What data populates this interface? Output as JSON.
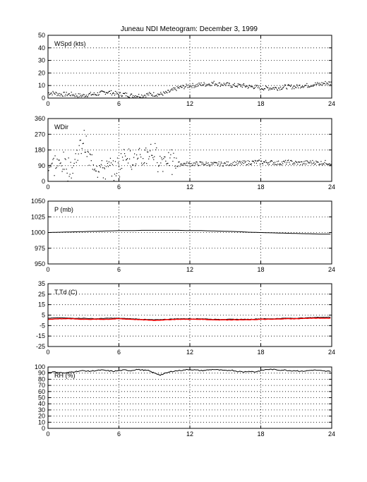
{
  "title": "Juneau NDI Meteogram:  December  3, 1999",
  "chart_data": [
    {
      "type": "scatter",
      "label": "WSpd (kts)",
      "xlim": [
        0,
        24
      ],
      "ylim": [
        0,
        50
      ],
      "xticks": [
        "0",
        "6",
        "12",
        "18",
        "24"
      ],
      "yticks": [
        "0",
        "10",
        "20",
        "30",
        "40",
        "50"
      ],
      "yticks_values": [
        0,
        10,
        20,
        30,
        40,
        50
      ],
      "grid": true,
      "x": [
        0,
        0.5,
        1,
        1.5,
        2,
        2.5,
        3,
        3.5,
        4,
        4.5,
        5,
        5.5,
        6,
        6.5,
        7,
        7.5,
        8,
        8.5,
        9,
        9.5,
        10,
        10.5,
        11,
        11.5,
        12,
        12.5,
        13,
        13.5,
        14,
        14.5,
        15,
        15.5,
        16,
        16.5,
        17,
        17.5,
        18,
        18.5,
        19,
        19.5,
        20,
        20.5,
        21,
        21.5,
        22,
        22.5,
        23,
        23.5,
        24
      ],
      "y": [
        4,
        4,
        3,
        3,
        3,
        2,
        2,
        3,
        3,
        4,
        5,
        4,
        3,
        3,
        2,
        2,
        2,
        3,
        3,
        3,
        4,
        6,
        8,
        9,
        10,
        10,
        11,
        11,
        12,
        11,
        11,
        10,
        10,
        10,
        9,
        9,
        8,
        8,
        8,
        8,
        9,
        9,
        9,
        10,
        10,
        11,
        11,
        12,
        12
      ]
    },
    {
      "type": "scatter",
      "label": "WDir",
      "xlim": [
        0,
        24
      ],
      "ylim": [
        0,
        360
      ],
      "xticks": [
        "0",
        "6",
        "12",
        "18",
        "24"
      ],
      "yticks": [
        "0",
        "90",
        "180",
        "270",
        "360"
      ],
      "yticks_values": [
        0,
        90,
        180,
        270,
        360
      ],
      "grid": true,
      "x": [
        0,
        0.5,
        1,
        1.5,
        2,
        2.5,
        3,
        3.5,
        4,
        4.5,
        5,
        5.5,
        6,
        6.5,
        7,
        7.5,
        8,
        8.5,
        9,
        9.5,
        10,
        10.5,
        11,
        11.5,
        12,
        12.5,
        13,
        13.5,
        14,
        14.5,
        15,
        15.5,
        16,
        16.5,
        17,
        17.5,
        18,
        18.5,
        19,
        19.5,
        20,
        20.5,
        21,
        21.5,
        22,
        22.5,
        23,
        23.5,
        24
      ],
      "y": [
        100,
        100,
        95,
        90,
        60,
        160,
        240,
        120,
        90,
        80,
        70,
        75,
        80,
        160,
        140,
        110,
        120,
        180,
        150,
        120,
        140,
        100,
        100,
        100,
        100,
        100,
        102,
        100,
        98,
        100,
        100,
        102,
        105,
        105,
        108,
        110,
        110,
        110,
        108,
        105,
        108,
        110,
        105,
        105,
        108,
        110,
        105,
        108,
        105
      ]
    },
    {
      "type": "line",
      "label": "P (mb)",
      "xlim": [
        0,
        24
      ],
      "ylim": [
        950,
        1050
      ],
      "xticks": [
        "0",
        "6",
        "12",
        "18",
        "24"
      ],
      "yticks": [
        "950",
        "975",
        "1000",
        "1025",
        "1050"
      ],
      "yticks_values": [
        950,
        975,
        1000,
        1025,
        1050
      ],
      "grid": true,
      "x": [
        0,
        1,
        2,
        3,
        4,
        5,
        6,
        7,
        8,
        9,
        10,
        11,
        12,
        13,
        14,
        15,
        16,
        17,
        18,
        19,
        20,
        21,
        22,
        23,
        24
      ],
      "y": [
        1000,
        1000.5,
        1001,
        1001.5,
        1002,
        1002.5,
        1003,
        1003,
        1003.5,
        1003.5,
        1003.5,
        1003.5,
        1003,
        1003,
        1002.5,
        1002,
        1001.5,
        1000.5,
        1000,
        999.5,
        999,
        998.5,
        998,
        997.5,
        997.5
      ]
    },
    {
      "type": "line",
      "label": "T,Td (C)",
      "xlim": [
        0,
        24
      ],
      "ylim": [
        -25,
        35
      ],
      "xticks": [
        "0",
        "6",
        "12",
        "18",
        "24"
      ],
      "yticks": [
        "-25",
        "-15",
        "-5",
        "5",
        "15",
        "25",
        "35"
      ],
      "yticks_values": [
        -25,
        -15,
        -5,
        5,
        15,
        25,
        35
      ],
      "grid": true,
      "series": [
        {
          "color": "#000000",
          "x": [
            0,
            1,
            2,
            3,
            4,
            5,
            6,
            7,
            8,
            9,
            10,
            11,
            12,
            13,
            14,
            15,
            16,
            17,
            18,
            19,
            20,
            21,
            22,
            23,
            24
          ],
          "y": [
            2,
            2.5,
            2,
            2,
            1.5,
            2,
            2,
            1.5,
            1,
            0.5,
            1,
            1.5,
            1.5,
            1.5,
            1,
            1,
            1,
            1,
            1.5,
            1.5,
            2,
            2,
            2.5,
            3,
            3
          ]
        },
        {
          "color": "#ff0000",
          "x": [
            0,
            1,
            2,
            3,
            4,
            5,
            6,
            7,
            8,
            9,
            10,
            11,
            12,
            13,
            14,
            15,
            16,
            17,
            18,
            19,
            20,
            21,
            22,
            23,
            24
          ],
          "y": [
            1,
            1.5,
            1.5,
            1,
            1,
            1,
            1.5,
            1,
            0.5,
            0,
            0.5,
            1,
            1,
            1,
            0.5,
            0.5,
            0.5,
            0.5,
            1,
            1,
            1.5,
            1.5,
            2,
            2,
            2
          ]
        }
      ]
    },
    {
      "type": "line",
      "label": "RH (%)",
      "xlim": [
        0,
        24
      ],
      "ylim": [
        0,
        100
      ],
      "xticks": [
        "0",
        "6",
        "12",
        "18",
        "24"
      ],
      "yticks": [
        "0",
        "10",
        "20",
        "30",
        "40",
        "50",
        "60",
        "70",
        "80",
        "90",
        "100"
      ],
      "yticks_values": [
        0,
        10,
        20,
        30,
        40,
        50,
        60,
        70,
        80,
        90,
        100
      ],
      "grid": true,
      "x": [
        0,
        0.5,
        1,
        1.5,
        2,
        2.5,
        3,
        3.5,
        4,
        4.5,
        5,
        5.5,
        6,
        6.5,
        7,
        7.5,
        8,
        8.5,
        9,
        9.5,
        10,
        10.5,
        11,
        11.5,
        12,
        12.5,
        13,
        13.5,
        14,
        14.5,
        15,
        15.5,
        16,
        16.5,
        17,
        17.5,
        18,
        18.5,
        19,
        19.5,
        20,
        20.5,
        21,
        21.5,
        22,
        22.5,
        23,
        23.5,
        24
      ],
      "y": [
        91,
        92,
        91,
        90,
        92,
        93,
        94,
        93,
        94,
        95,
        94,
        93,
        94,
        95,
        94,
        96,
        95,
        94,
        90,
        87,
        90,
        93,
        94,
        95,
        96,
        95,
        94,
        95,
        96,
        95,
        94,
        95,
        93,
        92,
        93,
        92,
        94,
        96,
        96,
        95,
        95,
        94,
        94,
        93,
        94,
        95,
        94,
        93,
        93
      ]
    }
  ]
}
